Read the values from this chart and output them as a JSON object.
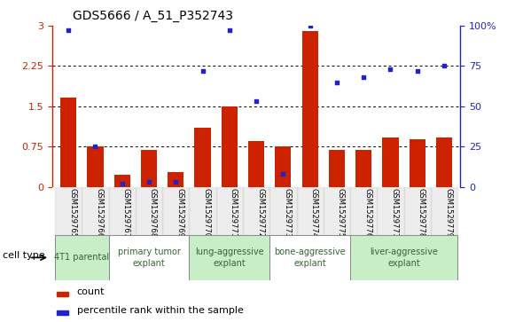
{
  "title": "GDS5666 / A_51_P352743",
  "samples": [
    "GSM1529765",
    "GSM1529766",
    "GSM1529767",
    "GSM1529768",
    "GSM1529769",
    "GSM1529770",
    "GSM1529771",
    "GSM1529772",
    "GSM1529773",
    "GSM1529774",
    "GSM1529775",
    "GSM1529776",
    "GSM1529777",
    "GSM1529778",
    "GSM1529779"
  ],
  "bar_heights": [
    1.67,
    0.75,
    0.22,
    0.68,
    0.28,
    1.1,
    1.5,
    0.85,
    0.75,
    2.9,
    0.68,
    0.68,
    0.92,
    0.88,
    0.92
  ],
  "blue_dot_pct": [
    97,
    25,
    2,
    3,
    3,
    72,
    97,
    53,
    8,
    100,
    65,
    68,
    73,
    72,
    75
  ],
  "ylim_left": [
    0,
    3
  ],
  "ylim_right": [
    0,
    100
  ],
  "yticks_left": [
    0,
    0.75,
    1.5,
    2.25,
    3.0
  ],
  "ytick_labels_left": [
    "0",
    "0.75",
    "1.5",
    "2.25",
    "3"
  ],
  "yticks_right": [
    0,
    25,
    50,
    75,
    100
  ],
  "ytick_labels_right": [
    "0",
    "25",
    "50",
    "75",
    "100%"
  ],
  "bar_color": "#cc2200",
  "dot_color": "#2222cc",
  "cell_types": [
    {
      "label": "4T1 parental",
      "start": 0,
      "end": 1,
      "color": "#c8eec8"
    },
    {
      "label": "primary tumor\nexplant",
      "start": 2,
      "end": 4,
      "color": "#ffffff"
    },
    {
      "label": "lung-aggressive\nexplant",
      "start": 5,
      "end": 7,
      "color": "#c8eec8"
    },
    {
      "label": "bone-aggressive\nexplant",
      "start": 8,
      "end": 10,
      "color": "#ffffff"
    },
    {
      "label": "liver-aggressive\nexplant",
      "start": 11,
      "end": 14,
      "color": "#c8eec8"
    }
  ],
  "legend_count_label": "count",
  "legend_pct_label": "percentile rank within the sample",
  "cell_type_label": "cell type",
  "tick_label_color_left": "#cc2200",
  "tick_label_color_right": "#2222cc"
}
